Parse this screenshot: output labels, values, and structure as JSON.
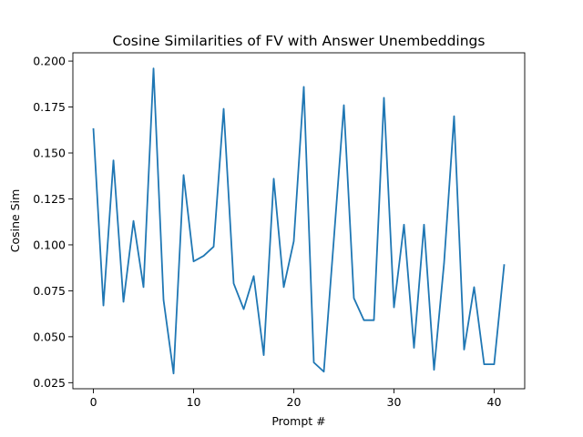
{
  "chart_data": {
    "type": "line",
    "title": "Cosine Similarities of FV with Answer Unembeddings",
    "xlabel": "Prompt #",
    "ylabel": "Cosine Sim",
    "xlim": [
      -2.05,
      43.05
    ],
    "ylim": [
      0.0217,
      0.2045
    ],
    "xticks": [
      0,
      10,
      20,
      30,
      40
    ],
    "xtick_labels": [
      "0",
      "10",
      "20",
      "30",
      "40"
    ],
    "yticks": [
      0.025,
      0.05,
      0.075,
      0.1,
      0.125,
      0.15,
      0.175,
      0.2
    ],
    "ytick_labels": [
      "0.025",
      "0.050",
      "0.075",
      "0.100",
      "0.125",
      "0.150",
      "0.175",
      "0.200"
    ],
    "grid": false,
    "legend": "none",
    "x": [
      0,
      1,
      2,
      3,
      4,
      5,
      6,
      7,
      8,
      9,
      10,
      11,
      12,
      13,
      14,
      15,
      16,
      17,
      18,
      19,
      20,
      21,
      22,
      23,
      24,
      25,
      26,
      27,
      28,
      29,
      30,
      31,
      32,
      33,
      34,
      35,
      36,
      37,
      38,
      39,
      40,
      41
    ],
    "series": [
      {
        "color": "#1f77b4",
        "values": [
          0.163,
          0.067,
          0.146,
          0.069,
          0.113,
          0.077,
          0.196,
          0.07,
          0.03,
          0.138,
          0.091,
          0.094,
          0.099,
          0.174,
          0.079,
          0.065,
          0.083,
          0.04,
          0.136,
          0.077,
          0.102,
          0.186,
          0.036,
          0.031,
          0.103,
          0.176,
          0.071,
          0.059,
          0.059,
          0.18,
          0.066,
          0.111,
          0.044,
          0.111,
          0.032,
          0.09,
          0.17,
          0.043,
          0.077,
          0.035,
          0.035,
          0.089
        ]
      }
    ]
  }
}
